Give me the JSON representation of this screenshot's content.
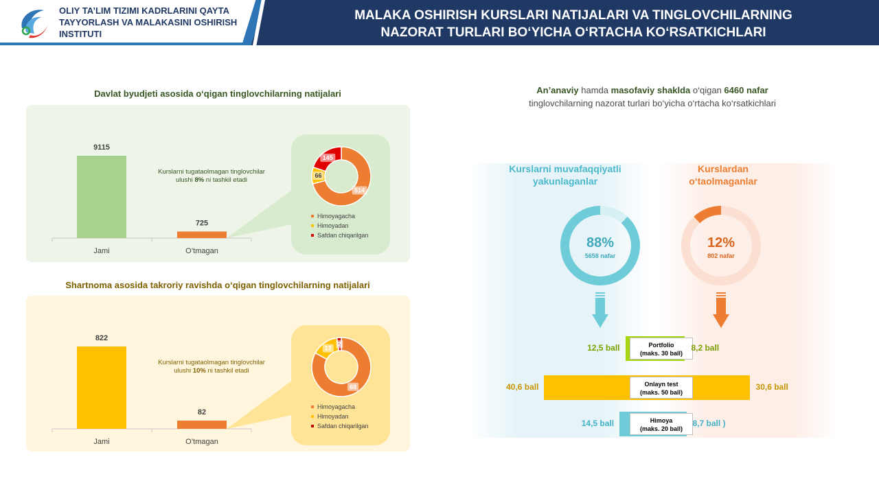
{
  "header": {
    "org_line1": "OLIY TA’LIM TIZIMI KADRLARINI QAYTA",
    "org_line2": "TAYYORLASH VA MALAKASINI OSHIRISH",
    "org_line3": "INSTITUTI",
    "title_line1": "MALAKA OSHIRISH KURSLARI NATIJALARI VA TINGLOVCHILARNING",
    "title_line2": "NAZORAT TURLARI BO‘YICHA O‘RTACHA KO‘RSATKICHLARI",
    "logo_icon": "institute-logo-icon"
  },
  "colors": {
    "navy": "#1f3864",
    "green_light": "#a9d18e",
    "green_panel": "#eef5e8",
    "orange": "#ed7d31",
    "yellow": "#ffc000",
    "yellow_panel": "#fff6dd",
    "red": "#c00000",
    "teal": "#6ecbd8",
    "lime": "#a5d610"
  },
  "section1": {
    "title": "Davlat byudjeti asosida o‘qigan tinglovchilarning natijalari",
    "note_line1": "Kurslarni tugataolmagan tinglovchilar",
    "note_pre": "ulushi ",
    "note_bold": "8%",
    "note_post": " ni tashkil etadi"
  },
  "section2": {
    "title": "Shartnoma asosida takroriy ravishda o‘qigan tinglovchilarning natijalari",
    "note_line1": "Kurslarni tugataolmagan tinglovchilar",
    "note_pre": "ulushi ",
    "note_bold": "10%",
    "note_post": " ni tashkil etadi"
  },
  "right": {
    "head_b1": "An’anaviy",
    "head_t1": " hamda ",
    "head_b2": "masofaviy shaklda",
    "head_t2": " o‘qigan ",
    "head_b3": "6460 nafar",
    "head_line2": "tinglovchilarning nazorat turlari bo‘yicha o‘rtacha ko‘rsatkichlari",
    "left_title_1": "Kurslarni muvafaqqiyatli",
    "left_title_2": "yakunlaganlar",
    "right_title_1": "Kurslardan",
    "right_title_2": "o‘taolmaganlar",
    "arrow_icon": "down-arrow-icon"
  },
  "chart_data": [
    {
      "type": "bar",
      "id": "budget-bar",
      "categories": [
        "Jami",
        "O’tmagan"
      ],
      "values": [
        9115,
        725
      ]
    },
    {
      "type": "pie",
      "id": "budget-donut",
      "labels": [
        "Himoyagacha",
        "Himoyadan",
        "Safdan chiqarilgan"
      ],
      "values": [
        514,
        66,
        145
      ],
      "colors": [
        "#ed7d31",
        "#ffc000",
        "#e00000"
      ],
      "legend": "bottom"
    },
    {
      "type": "bar",
      "id": "contract-bar",
      "categories": [
        "Jami",
        "O’tmagan"
      ],
      "values": [
        822,
        82
      ]
    },
    {
      "type": "pie",
      "id": "contract-donut",
      "labels": [
        "Himoyagacha",
        "Himoyadan",
        "Safdan chiqarilgan"
      ],
      "values": [
        68,
        12,
        2
      ],
      "colors": [
        "#ed7d31",
        "#ffc000",
        "#c00000"
      ],
      "legend": "bottom"
    },
    {
      "type": "pie",
      "id": "passed-ring",
      "percent": 88,
      "label": "88%",
      "sub_label": "5658 nafar"
    },
    {
      "type": "pie",
      "id": "failed-ring",
      "percent": 12,
      "label": "12%",
      "sub_label": "802 nafar"
    },
    {
      "type": "bar",
      "id": "control-types",
      "categories": [
        "Portfolio",
        "Onlayn test",
        "Himoya"
      ],
      "maks": [
        "(maks. 30 ball)",
        "(maks. 50 ball)",
        "(maks. 20 ball)"
      ],
      "series": [
        {
          "values": [
            12.5,
            40.6,
            14.5
          ],
          "labels": [
            "12,5 ball",
            "40,6 ball",
            "14,5 ball"
          ]
        },
        {
          "values": [
            8.2,
            30.6,
            8.7
          ],
          "labels": [
            "8,2 ball",
            "30,6 ball",
            "8,7 ball )"
          ]
        }
      ]
    }
  ]
}
